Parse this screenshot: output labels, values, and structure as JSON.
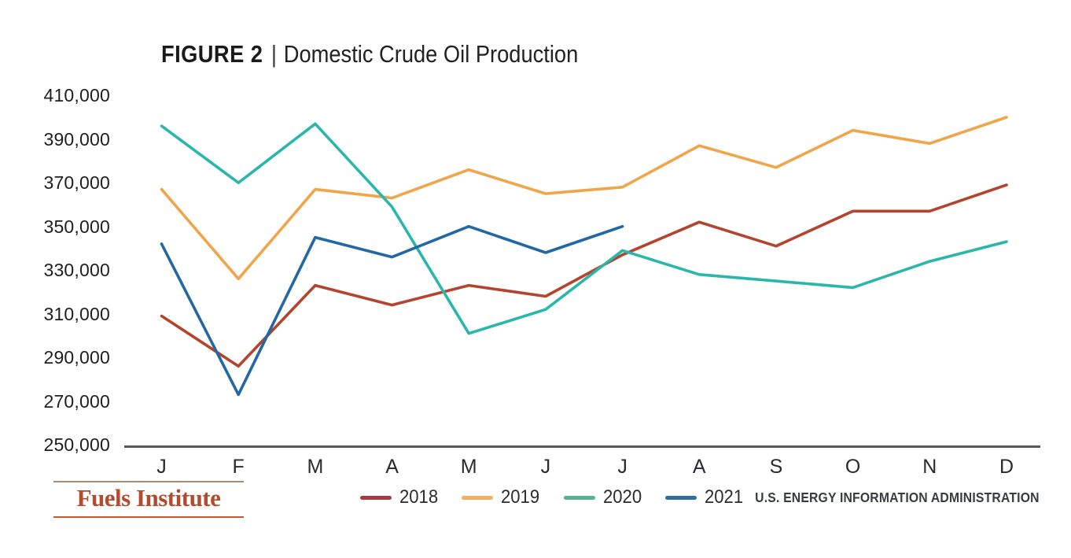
{
  "title": {
    "figure_label": "FIGURE 2",
    "separator": "|",
    "text": "Domestic Crude Oil Production"
  },
  "footer": {
    "logo_text": "Fuels Institute",
    "source_text": "U.S. ENERGY INFORMATION ADMINISTRATION"
  },
  "chart_data": {
    "type": "line",
    "title": "Domestic Crude Oil Production",
    "categories": [
      "J",
      "F",
      "M",
      "A",
      "M",
      "J",
      "J",
      "A",
      "S",
      "O",
      "N",
      "D"
    ],
    "series": [
      {
        "name": "2018",
        "color": "#b3452f",
        "legend_color": "#a63b46",
        "values": [
          310000,
          287000,
          324000,
          315000,
          324000,
          319000,
          338000,
          353000,
          342000,
          358000,
          358000,
          370000
        ]
      },
      {
        "name": "2019",
        "color": "#f0a54a",
        "legend_color": "#f1b161",
        "values": [
          368000,
          327000,
          368000,
          364000,
          377000,
          366000,
          369000,
          388000,
          378000,
          395000,
          389000,
          401000
        ]
      },
      {
        "name": "2020",
        "color": "#29b6ab",
        "legend_color": "#58b291",
        "values": [
          397000,
          371000,
          398000,
          360000,
          302000,
          313000,
          340000,
          329000,
          326000,
          323000,
          335000,
          344000
        ]
      },
      {
        "name": "2021",
        "color": "#2368a4",
        "legend_color": "#2e6f9e",
        "values": [
          343000,
          274000,
          346000,
          337000,
          351000,
          339000,
          351000
        ]
      }
    ],
    "ylim": [
      250000,
      410000
    ],
    "ytick_step": 20000,
    "yticks": [
      "250,000",
      "270,000",
      "290,000",
      "310,000",
      "330,000",
      "350,000",
      "370,000",
      "390,000",
      "410,000"
    ],
    "xlabel": "",
    "ylabel": "",
    "grid": false,
    "legend_position": "bottom",
    "axis_color": "#58595b"
  }
}
